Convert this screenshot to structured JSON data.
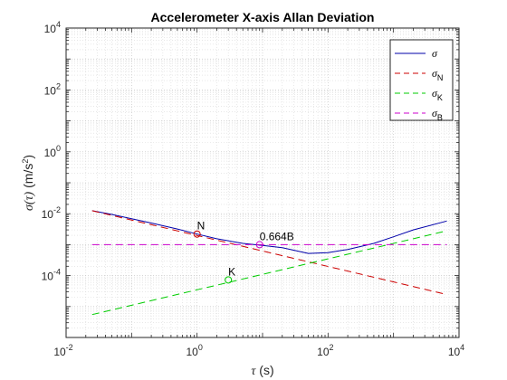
{
  "chart_data": {
    "type": "line",
    "title": "Accelerometer X-axis Allan Deviation",
    "xlabel": {
      "symbol": "τ",
      "unit": " (s)"
    },
    "ylabel": {
      "symbol": "σ(τ)",
      "unit": " (m/s",
      "sup": "2",
      "close": ")"
    },
    "x_scale": "log",
    "y_scale": "log",
    "xlim": [
      0.01,
      10000
    ],
    "ylim": [
      1e-06,
      10000
    ],
    "x_ticks": [
      {
        "base": "10",
        "exp": "-2"
      },
      {
        "base": "10",
        "exp": "0"
      },
      {
        "base": "10",
        "exp": "2"
      },
      {
        "base": "10",
        "exp": "4"
      }
    ],
    "y_ticks": [
      {
        "base": "10",
        "exp": "-4"
      },
      {
        "base": "10",
        "exp": "-2"
      },
      {
        "base": "10",
        "exp": "0"
      },
      {
        "base": "10",
        "exp": "2"
      },
      {
        "base": "10",
        "exp": "4"
      }
    ],
    "grid": true,
    "legend_position": "top-right",
    "series": [
      {
        "name": "σ",
        "color": "#0000aa",
        "style": "solid",
        "x": [
          0.025,
          0.05,
          0.1,
          0.2,
          0.5,
          1,
          2,
          5,
          10,
          20,
          50,
          100,
          200,
          500,
          1000,
          2000,
          6500
        ],
        "y": [
          0.0125,
          0.0095,
          0.0069,
          0.005,
          0.0032,
          0.0022,
          0.00155,
          0.0011,
          0.00095,
          0.0008,
          0.00052,
          0.00055,
          0.0007,
          0.0011,
          0.0018,
          0.003,
          0.0058
        ]
      },
      {
        "name": "σ",
        "sub": "N",
        "color": "#cc0000",
        "style": "dashed",
        "x": [
          0.025,
          6500
        ],
        "y": [
          0.0125,
          2.45e-05
        ]
      },
      {
        "name": "σ",
        "sub": "K",
        "color": "#00cc00",
        "style": "dashed",
        "x": [
          0.025,
          6500
        ],
        "y": [
          5.5e-06,
          0.0028
        ]
      },
      {
        "name": "σ",
        "sub": "B",
        "color": "#cc00cc",
        "style": "dashed",
        "x": [
          0.025,
          6500
        ],
        "y": [
          0.001,
          0.001
        ]
      }
    ],
    "annotations": [
      {
        "label": "N",
        "x": 1,
        "y": 0.0022,
        "color": "#cc0000"
      },
      {
        "label": "0.664B",
        "x": 9,
        "y": 0.001,
        "color": "#cc00cc"
      },
      {
        "label": "K",
        "x": 3,
        "y": 7.25e-05,
        "color": "#00cc00"
      }
    ]
  }
}
